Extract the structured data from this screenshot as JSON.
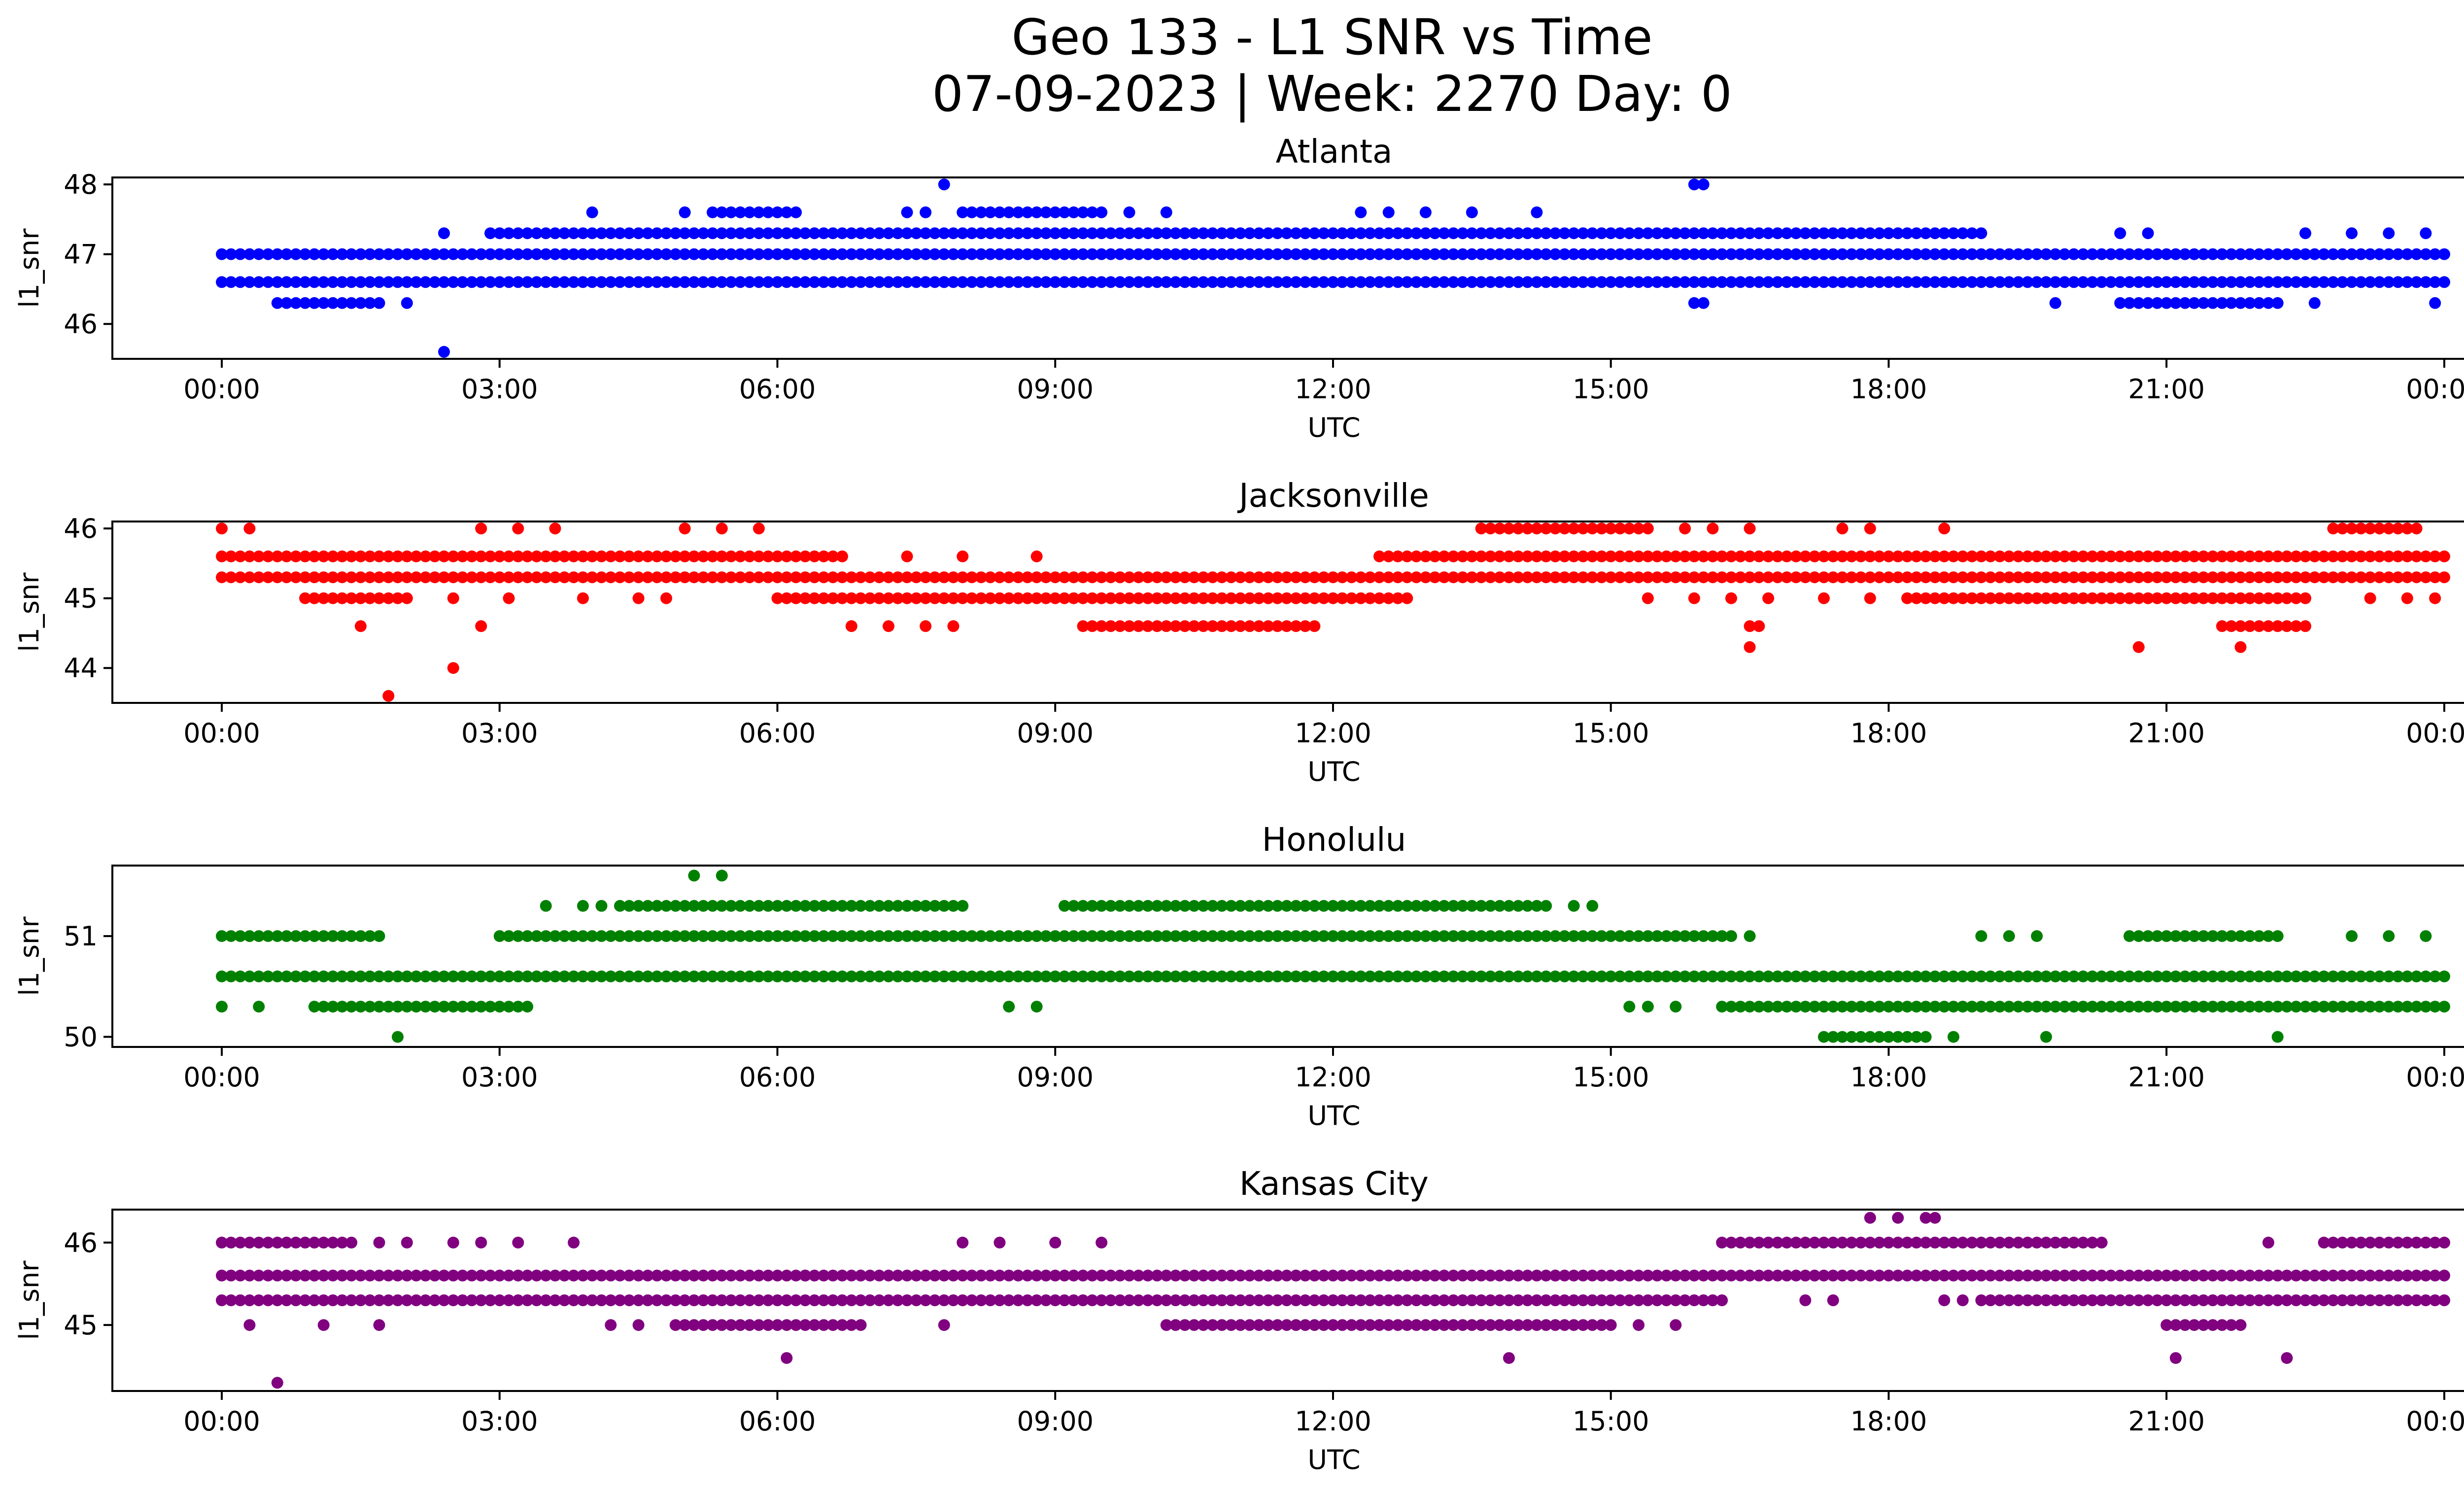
{
  "figure": {
    "title_line1": "Geo 133 - L1 SNR vs Time",
    "title_line2": "07-09-2023 | Week: 2270 Day: 0"
  },
  "chart_data": [
    {
      "type": "scatter",
      "title": "Atlanta",
      "xlabel": "UTC",
      "ylabel": "l1_snr",
      "color": "#0000ff",
      "xlim": [
        0,
        24
      ],
      "ylim": [
        45.5,
        48.1
      ],
      "xticks": [
        "00:00",
        "03:00",
        "06:00",
        "09:00",
        "12:00",
        "15:00",
        "18:00",
        "21:00",
        "00:00"
      ],
      "yticks": [
        46,
        47,
        48
      ],
      "bands": [
        {
          "y": 47.0,
          "from": 0.0,
          "to": 24.0
        },
        {
          "y": 46.6,
          "from": 0.0,
          "to": 24.0
        },
        {
          "y": 47.3,
          "from": 2.9,
          "to": 19.0
        },
        {
          "y": 47.6,
          "from": 5.3,
          "to": 6.2
        },
        {
          "y": 47.6,
          "from": 8.0,
          "to": 9.4
        },
        {
          "y": 46.3,
          "from": 0.6,
          "to": 1.7
        },
        {
          "y": 46.3,
          "from": 20.5,
          "to": 22.2
        }
      ],
      "points": [
        [
          2.4,
          45.6
        ],
        [
          7.8,
          48.0
        ],
        [
          15.9,
          48.0
        ],
        [
          16.0,
          48.0
        ],
        [
          4.0,
          47.6
        ],
        [
          5.0,
          47.6
        ],
        [
          7.4,
          47.6
        ],
        [
          7.6,
          47.6
        ],
        [
          9.5,
          47.6
        ],
        [
          9.8,
          47.6
        ],
        [
          10.2,
          47.6
        ],
        [
          12.3,
          47.6
        ],
        [
          12.6,
          47.6
        ],
        [
          13.0,
          47.6
        ],
        [
          13.5,
          47.6
        ],
        [
          14.2,
          47.6
        ],
        [
          2.4,
          47.3
        ],
        [
          20.5,
          47.3
        ],
        [
          20.8,
          47.3
        ],
        [
          22.5,
          47.3
        ],
        [
          23.0,
          47.3
        ],
        [
          23.4,
          47.3
        ],
        [
          23.8,
          47.3
        ],
        [
          5.0,
          46.6
        ],
        [
          7.8,
          46.6
        ],
        [
          12.0,
          46.6
        ],
        [
          12.5,
          46.6
        ],
        [
          13.5,
          46.6
        ],
        [
          14.0,
          46.6
        ],
        [
          2.0,
          46.3
        ],
        [
          19.8,
          46.3
        ],
        [
          15.9,
          46.3
        ],
        [
          16.0,
          46.3
        ],
        [
          22.6,
          46.3
        ],
        [
          23.9,
          46.3
        ]
      ]
    },
    {
      "type": "scatter",
      "title": "Jacksonville",
      "xlabel": "UTC",
      "ylabel": "l1_snr",
      "color": "#ff0000",
      "xlim": [
        0,
        24
      ],
      "ylim": [
        43.5,
        46.1
      ],
      "xticks": [
        "00:00",
        "03:00",
        "06:00",
        "09:00",
        "12:00",
        "15:00",
        "18:00",
        "21:00",
        "00:00"
      ],
      "yticks": [
        44,
        45,
        46
      ],
      "bands": [
        {
          "y": 45.3,
          "from": 0.0,
          "to": 24.0
        },
        {
          "y": 45.6,
          "from": 0.0,
          "to": 6.7
        },
        {
          "y": 45.6,
          "from": 12.5,
          "to": 24.0
        },
        {
          "y": 45.0,
          "from": 6.0,
          "to": 12.8
        },
        {
          "y": 45.0,
          "from": 0.9,
          "to": 2.0
        },
        {
          "y": 45.0,
          "from": 18.2,
          "to": 22.5
        },
        {
          "y": 44.6,
          "from": 9.3,
          "to": 11.8
        },
        {
          "y": 44.6,
          "from": 21.6,
          "to": 22.5
        },
        {
          "y": 46.0,
          "from": 13.6,
          "to": 15.4
        },
        {
          "y": 46.0,
          "from": 22.8,
          "to": 23.7
        }
      ],
      "points": [
        [
          1.8,
          43.6
        ],
        [
          2.5,
          44.0
        ],
        [
          1.5,
          44.6
        ],
        [
          2.8,
          44.6
        ],
        [
          6.8,
          44.6
        ],
        [
          7.2,
          44.6
        ],
        [
          7.6,
          44.6
        ],
        [
          7.9,
          44.6
        ],
        [
          16.5,
          44.6
        ],
        [
          16.6,
          44.6
        ],
        [
          16.5,
          44.3
        ],
        [
          20.7,
          44.3
        ],
        [
          21.8,
          44.3
        ],
        [
          0.0,
          46.0
        ],
        [
          0.3,
          46.0
        ],
        [
          2.8,
          46.0
        ],
        [
          3.2,
          46.0
        ],
        [
          3.6,
          46.0
        ],
        [
          5.0,
          46.0
        ],
        [
          5.4,
          46.0
        ],
        [
          5.8,
          46.0
        ],
        [
          15.8,
          46.0
        ],
        [
          16.1,
          46.0
        ],
        [
          16.5,
          46.0
        ],
        [
          17.5,
          46.0
        ],
        [
          17.8,
          46.0
        ],
        [
          18.6,
          46.0
        ],
        [
          2.5,
          45.0
        ],
        [
          3.1,
          45.0
        ],
        [
          3.9,
          45.0
        ],
        [
          4.5,
          45.0
        ],
        [
          4.8,
          45.0
        ],
        [
          15.4,
          45.0
        ],
        [
          15.9,
          45.0
        ],
        [
          16.3,
          45.0
        ],
        [
          16.7,
          45.0
        ],
        [
          17.3,
          45.0
        ],
        [
          17.8,
          45.0
        ],
        [
          23.2,
          45.0
        ],
        [
          23.6,
          45.0
        ],
        [
          23.9,
          45.0
        ],
        [
          7.4,
          45.6
        ],
        [
          8.0,
          45.6
        ],
        [
          8.8,
          45.6
        ],
        [
          9.7,
          45.3
        ],
        [
          10.3,
          45.3
        ],
        [
          11.2,
          45.3
        ]
      ]
    },
    {
      "type": "scatter",
      "title": "Honolulu",
      "xlabel": "UTC",
      "ylabel": "l1_snr",
      "color": "#008000",
      "xlim": [
        0,
        24
      ],
      "ylim": [
        49.9,
        51.7
      ],
      "xticks": [
        "00:00",
        "03:00",
        "06:00",
        "09:00",
        "12:00",
        "15:00",
        "18:00",
        "21:00",
        "00:00"
      ],
      "yticks": [
        50,
        51
      ],
      "bands": [
        {
          "y": 50.6,
          "from": 0.0,
          "to": 24.0
        },
        {
          "y": 51.0,
          "from": 3.0,
          "to": 16.3
        },
        {
          "y": 51.0,
          "from": 0.0,
          "to": 1.7
        },
        {
          "y": 51.3,
          "from": 4.3,
          "to": 8.0
        },
        {
          "y": 51.3,
          "from": 9.1,
          "to": 14.3
        },
        {
          "y": 50.3,
          "from": 1.0,
          "to": 3.3
        },
        {
          "y": 50.3,
          "from": 16.2,
          "to": 24.0
        },
        {
          "y": 51.0,
          "from": 20.6,
          "to": 22.2
        },
        {
          "y": 50.0,
          "from": 17.3,
          "to": 18.4
        }
      ],
      "points": [
        [
          5.1,
          51.6
        ],
        [
          5.4,
          51.6
        ],
        [
          3.5,
          51.3
        ],
        [
          3.9,
          51.3
        ],
        [
          4.1,
          51.3
        ],
        [
          14.6,
          51.3
        ],
        [
          14.8,
          51.3
        ],
        [
          16.5,
          51.0
        ],
        [
          19.0,
          51.0
        ],
        [
          19.3,
          51.0
        ],
        [
          19.6,
          51.0
        ],
        [
          23.0,
          51.0
        ],
        [
          23.4,
          51.0
        ],
        [
          23.8,
          51.0
        ],
        [
          1.9,
          50.0
        ],
        [
          18.7,
          50.0
        ],
        [
          19.7,
          50.0
        ],
        [
          22.2,
          50.0
        ],
        [
          0.0,
          50.3
        ],
        [
          0.4,
          50.3
        ],
        [
          8.5,
          50.3
        ],
        [
          8.8,
          50.3
        ],
        [
          15.2,
          50.3
        ],
        [
          15.4,
          50.3
        ],
        [
          15.7,
          50.3
        ]
      ]
    },
    {
      "type": "scatter",
      "title": "Kansas City",
      "xlabel": "UTC",
      "ylabel": "l1_snr",
      "color": "#800080",
      "xlim": [
        0,
        24
      ],
      "ylim": [
        44.2,
        46.4
      ],
      "xticks": [
        "00:00",
        "03:00",
        "06:00",
        "09:00",
        "12:00",
        "15:00",
        "18:00",
        "21:00",
        "00:00"
      ],
      "yticks": [
        45,
        46
      ],
      "bands": [
        {
          "y": 45.6,
          "from": 0.0,
          "to": 24.0
        },
        {
          "y": 45.3,
          "from": 0.0,
          "to": 16.2
        },
        {
          "y": 45.3,
          "from": 19.0,
          "to": 24.0
        },
        {
          "y": 46.0,
          "from": 0.0,
          "to": 1.4
        },
        {
          "y": 46.0,
          "from": 16.2,
          "to": 20.3
        },
        {
          "y": 46.0,
          "from": 22.7,
          "to": 24.0
        },
        {
          "y": 45.0,
          "from": 5.0,
          "to": 6.9
        },
        {
          "y": 45.0,
          "from": 10.2,
          "to": 15.0
        },
        {
          "y": 45.0,
          "from": 21.0,
          "to": 21.8
        }
      ],
      "points": [
        [
          0.6,
          44.3
        ],
        [
          6.1,
          44.6
        ],
        [
          13.9,
          44.6
        ],
        [
          21.1,
          44.6
        ],
        [
          22.3,
          44.6
        ],
        [
          17.8,
          46.3
        ],
        [
          18.1,
          46.3
        ],
        [
          18.4,
          46.3
        ],
        [
          18.5,
          46.3
        ],
        [
          1.7,
          46.0
        ],
        [
          2.0,
          46.0
        ],
        [
          2.5,
          46.0
        ],
        [
          2.8,
          46.0
        ],
        [
          3.2,
          46.0
        ],
        [
          3.8,
          46.0
        ],
        [
          8.0,
          46.0
        ],
        [
          8.4,
          46.0
        ],
        [
          9.0,
          46.0
        ],
        [
          9.5,
          46.0
        ],
        [
          22.1,
          46.0
        ],
        [
          0.3,
          45.0
        ],
        [
          1.1,
          45.0
        ],
        [
          1.7,
          45.0
        ],
        [
          4.2,
          45.0
        ],
        [
          4.5,
          45.0
        ],
        [
          4.9,
          45.0
        ],
        [
          7.8,
          45.0
        ],
        [
          15.3,
          45.0
        ],
        [
          15.7,
          45.0
        ],
        [
          17.1,
          45.3
        ],
        [
          17.4,
          45.3
        ],
        [
          18.6,
          45.3
        ],
        [
          18.8,
          45.3
        ],
        [
          13.7,
          45.6
        ],
        [
          14.4,
          45.6
        ],
        [
          11.3,
          45.6
        ],
        [
          11.6,
          45.6
        ],
        [
          6.3,
          45.6
        ],
        [
          6.9,
          45.6
        ]
      ]
    }
  ]
}
